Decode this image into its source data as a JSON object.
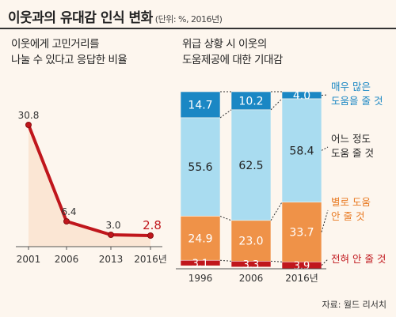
{
  "header": {
    "title": "이웃과의 유대감 인식 변화",
    "unit": "(단위: %, 2016년)"
  },
  "left_subtitle": [
    "이웃에게 고민거리를",
    "나눌 수 있다고 응답한 비율"
  ],
  "right_subtitle": [
    "위급 상황 시 이웃의",
    "도움제공에 대한 기대감"
  ],
  "source": "자료: 월드 리서치",
  "colors": {
    "line": "#c0161c",
    "area": "#fbe6d4",
    "very": "#1a87c4",
    "some": "#a9dcf0",
    "little": "#ef9248",
    "none": "#c0161c",
    "connector": "#333333"
  },
  "chart_data": [
    {
      "type": "area",
      "x": [
        "2001",
        "2006",
        "2013",
        "2016년"
      ],
      "values": [
        30.8,
        6.4,
        3.0,
        2.8
      ],
      "value_labels": [
        "30.8",
        "6.4",
        "3.0",
        "2.8"
      ],
      "ylim": [
        0,
        35
      ]
    },
    {
      "type": "bar",
      "stacked": true,
      "normalized": true,
      "categories": [
        "1996",
        "2006",
        "2016년"
      ],
      "series": [
        {
          "name": "전혀 안 줄 것",
          "key": "none",
          "values": [
            3.1,
            3.3,
            3.9
          ]
        },
        {
          "name": "별로 도움 안 줄 것",
          "key": "little",
          "values": [
            24.9,
            23.0,
            33.7
          ]
        },
        {
          "name": "어느 정도 도움 줄 것",
          "key": "some",
          "values": [
            55.6,
            62.5,
            58.4
          ]
        },
        {
          "name": "매우 많은 도움을 줄 것",
          "key": "very",
          "values": [
            14.7,
            10.2,
            4.0
          ]
        }
      ],
      "legend_lines": {
        "very": [
          "매우 많은",
          "도움을 줄 것"
        ],
        "some": [
          "어느 정도",
          "도움 줄 것"
        ],
        "little": [
          "별로 도움",
          "안 줄 것"
        ],
        "none": [
          "전혀 안 줄 것"
        ]
      }
    }
  ]
}
